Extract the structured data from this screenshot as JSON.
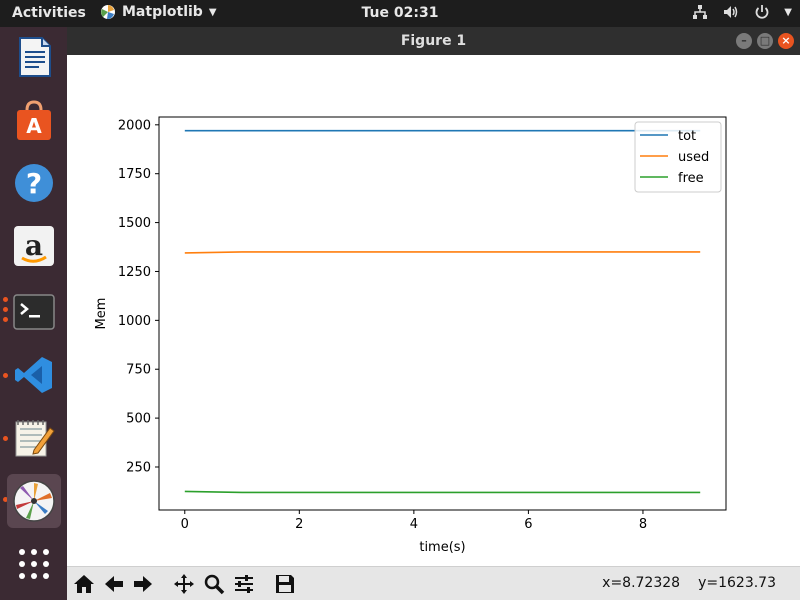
{
  "top_panel": {
    "activities": "Activities",
    "app_name": "Matplotlib",
    "clock": "Tue 02:31"
  },
  "dock": {
    "items": [
      {
        "name": "LibreOffice Writer",
        "icon": "writer-icon"
      },
      {
        "name": "Ubuntu Software",
        "icon": "software-center-icon"
      },
      {
        "name": "Help",
        "icon": "help-icon"
      },
      {
        "name": "Amazon",
        "icon": "amazon-icon"
      },
      {
        "name": "Terminal",
        "icon": "terminal-icon"
      },
      {
        "name": "Visual Studio Code",
        "icon": "vscode-icon"
      },
      {
        "name": "Text Editor",
        "icon": "text-editor-icon"
      },
      {
        "name": "Matplotlib",
        "icon": "matplotlib-icon"
      },
      {
        "name": "Show Applications",
        "icon": "app-grid-icon"
      }
    ]
  },
  "window": {
    "title": "Figure 1"
  },
  "colors": {
    "tot": "#1f77b4",
    "used": "#ff7f0e",
    "free": "#2ca02c",
    "accent": "#e95420"
  },
  "chart_data": {
    "type": "line",
    "xlabel": "time(s)",
    "ylabel": "Mem",
    "xlim": [
      -0.45,
      9.45
    ],
    "ylim": [
      30,
      2040
    ],
    "xticks": [
      0,
      2,
      4,
      6,
      8
    ],
    "yticks": [
      250,
      500,
      750,
      1000,
      1250,
      1500,
      1750,
      2000
    ],
    "grid": false,
    "legend_position": "top-right",
    "x": [
      0,
      1,
      2,
      3,
      4,
      5,
      6,
      7,
      8,
      9
    ],
    "series": [
      {
        "name": "tot",
        "values": [
          1970,
          1970,
          1970,
          1970,
          1970,
          1970,
          1970,
          1970,
          1970,
          1970
        ]
      },
      {
        "name": "used",
        "values": [
          1345,
          1350,
          1350,
          1350,
          1350,
          1350,
          1350,
          1350,
          1350,
          1350
        ]
      },
      {
        "name": "free",
        "values": [
          125,
          120,
          120,
          120,
          120,
          120,
          120,
          120,
          120,
          120
        ]
      }
    ]
  },
  "toolbar": {
    "tools": [
      "home-icon",
      "back-icon",
      "forward-icon",
      "pan-icon",
      "zoom-icon",
      "configure-subplots-icon",
      "save-icon"
    ],
    "x_readout": "x=8.72328",
    "y_readout": "y=1623.73"
  }
}
